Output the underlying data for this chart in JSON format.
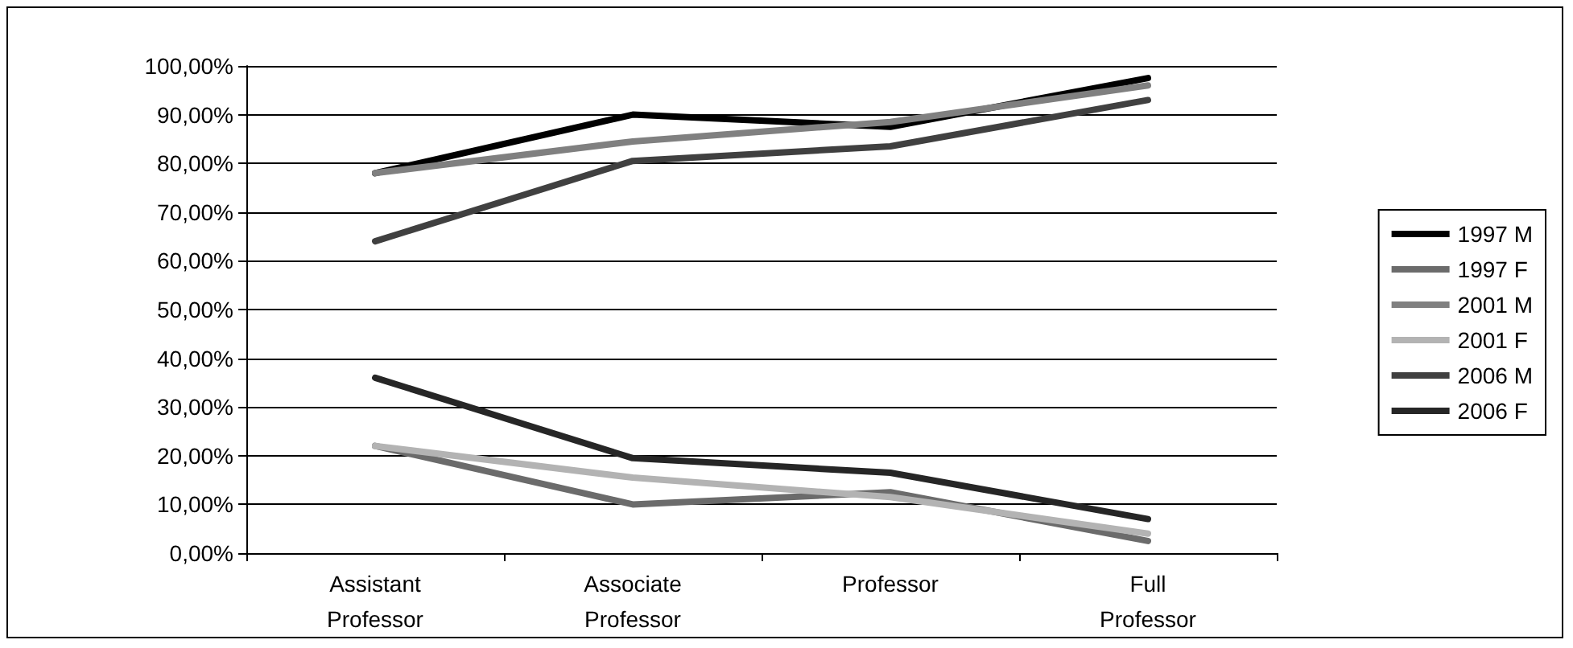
{
  "chart_data": {
    "type": "line",
    "categories": [
      "Assistant Professor",
      "Associate Professor",
      "Professor",
      "Full Professor"
    ],
    "series": [
      {
        "name": "1997 M",
        "color": "#000000",
        "values": [
          78,
          90,
          87.5,
          97.5
        ]
      },
      {
        "name": "1997 F",
        "color": "#6b6b6b",
        "values": [
          22,
          10,
          12.5,
          2.5
        ]
      },
      {
        "name": "2001 M",
        "color": "#808080",
        "values": [
          78,
          84.5,
          88.5,
          96
        ]
      },
      {
        "name": "2001 F",
        "color": "#b3b3b3",
        "values": [
          22,
          15.5,
          11.5,
          4
        ]
      },
      {
        "name": "2006 M",
        "color": "#404040",
        "values": [
          64,
          80.5,
          83.5,
          93
        ]
      },
      {
        "name": "2006 F",
        "color": "#262626",
        "values": [
          36,
          19.5,
          16.5,
          7
        ]
      }
    ],
    "ylim": [
      0,
      100
    ],
    "yticks": [
      {
        "value": 0,
        "label": "0,00%"
      },
      {
        "value": 10,
        "label": "10,00%"
      },
      {
        "value": 20,
        "label": "20,00%"
      },
      {
        "value": 30,
        "label": "30,00%"
      },
      {
        "value": 40,
        "label": "40,00%"
      },
      {
        "value": 50,
        "label": "50,00%"
      },
      {
        "value": 60,
        "label": "60,00%"
      },
      {
        "value": 70,
        "label": "70,00%"
      },
      {
        "value": 80,
        "label": "80,00%"
      },
      {
        "value": 90,
        "label": "90,00%"
      },
      {
        "value": 100,
        "label": "100,00%"
      }
    ],
    "grid": "y",
    "legend": "right",
    "marker": "none",
    "line_style": "solid"
  }
}
